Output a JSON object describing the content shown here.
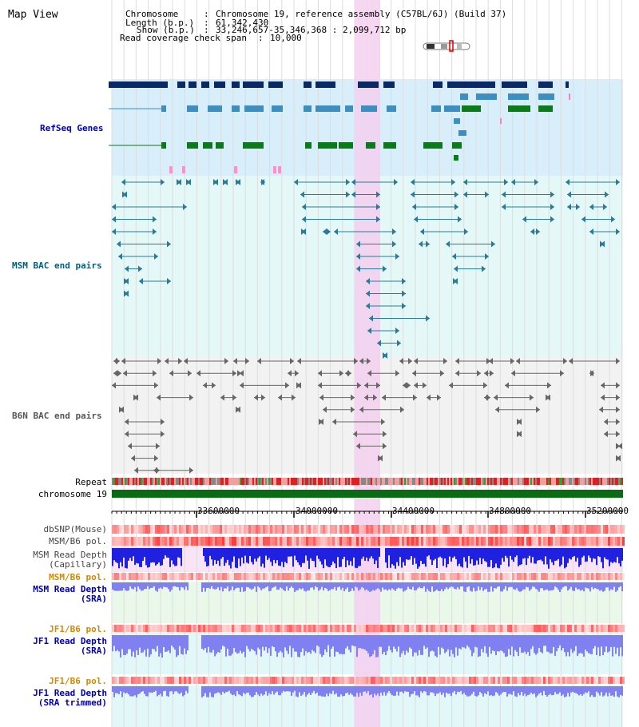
{
  "page": {
    "title": "Map View"
  },
  "header": {
    "chromosome_label": "Chromosome",
    "chromosome_value": "Chromosome 19, reference assembly (C57BL/6J) (Build 37)",
    "length_label": "Length (b.p.)",
    "length_value": "61,342,430",
    "show_label": "Show (b.p.)",
    "show_value": "33,246,657-35,346,368 : 2,099,712 bp",
    "coverage_label": "Read coverage check span",
    "coverage_value": "10,000"
  },
  "tracks": {
    "refseq": "RefSeq Genes",
    "msm_bac": "MSM BAC end pairs",
    "b6n_bac": "B6N BAC end pairs",
    "repeat": "Repeat",
    "chromosome": "chromosome 19",
    "dbsnp": "dbSNP(Mouse)",
    "msm_b6_pol_1": "MSM/B6 pol.",
    "msm_read_depth_cap_1": "MSM Read Depth",
    "msm_read_depth_cap_2": "(Capillary)",
    "msm_b6_pol_2": "MSM/B6 pol.",
    "msm_read_depth_sra_1": "MSM Read Depth",
    "msm_read_depth_sra_2": "(SRA)",
    "jf1_b6_pol_1": "JF1/B6 pol.",
    "jf1_read_depth_sra_1": "JF1 Read Depth",
    "jf1_read_depth_sra_2": "(SRA)",
    "jf1_b6_pol_2": "JF1/B6 pol.",
    "jf1_read_depth_trim_1": "JF1 Read Depth",
    "jf1_read_depth_trim_2": "(SRA trimmed)"
  },
  "axis": {
    "ticks": [
      "33600000",
      "34000000",
      "34400000",
      "34800000",
      "35200000"
    ]
  },
  "colors": {
    "highlight": "#f5d0f0",
    "refseq_bg": "#d8eefa",
    "msm_bg": "#e4f8f8",
    "b6n_bg": "#f2f2f2",
    "gene_dark": "#0a2a66",
    "gene_mid": "#3c8fbf",
    "gene_green": "#0a7a1a",
    "chromosome": "#0b6b14",
    "depth_blue": "#2020e0",
    "depth_light": "#8080f0"
  }
}
